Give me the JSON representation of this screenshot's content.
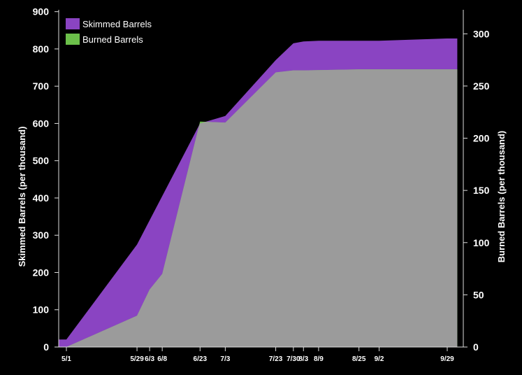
{
  "chart_data": {
    "type": "area",
    "title": "",
    "x_dates": [
      "5/1",
      "5/29",
      "6/3",
      "6/8",
      "6/23",
      "7/3",
      "7/23",
      "7/30",
      "8/3",
      "8/9",
      "8/25",
      "9/2",
      "9/29"
    ],
    "x_tick_labels": [
      "5/1",
      "5/29",
      "6/3",
      "6/8",
      "6/23",
      "7/3",
      "7/23",
      "7/30",
      "8/3",
      "8/9",
      "8/25",
      "9/2",
      "9/29"
    ],
    "x_days_note": "x positions follow calendar dates",
    "series": [
      {
        "name": "Skimmed Barrels",
        "axis": "left",
        "color": "#8a44c2",
        "points": [
          {
            "date": "4/27",
            "value": 20
          },
          {
            "date": "5/1",
            "value": 20
          },
          {
            "date": "5/29",
            "value": 275
          },
          {
            "date": "6/3",
            "value": 340
          },
          {
            "date": "6/23",
            "value": 600
          },
          {
            "date": "7/3",
            "value": 620
          },
          {
            "date": "7/23",
            "value": 770
          },
          {
            "date": "7/30",
            "value": 815
          },
          {
            "date": "8/3",
            "value": 820
          },
          {
            "date": "8/9",
            "value": 822
          },
          {
            "date": "8/25",
            "value": 822
          },
          {
            "date": "9/2",
            "value": 822
          },
          {
            "date": "9/29",
            "value": 828
          },
          {
            "date": "10/3",
            "value": 828
          }
        ]
      },
      {
        "name": "Burned Barrels",
        "axis": "right",
        "color": "#6cc04a",
        "points": [
          {
            "date": "4/27",
            "value": 0
          },
          {
            "date": "5/1",
            "value": 0
          },
          {
            "date": "5/29",
            "value": 30
          },
          {
            "date": "6/3",
            "value": 55
          },
          {
            "date": "6/8",
            "value": 70
          },
          {
            "date": "6/23",
            "value": 216
          },
          {
            "date": "7/3",
            "value": 215
          },
          {
            "date": "7/23",
            "value": 263
          },
          {
            "date": "7/30",
            "value": 265
          },
          {
            "date": "8/3",
            "value": 265
          },
          {
            "date": "8/25",
            "value": 266
          },
          {
            "date": "9/2",
            "value": 266
          },
          {
            "date": "9/29",
            "value": 266
          },
          {
            "date": "10/3",
            "value": 266
          }
        ]
      }
    ],
    "overlap_color": "#9b9b9b",
    "left_axis": {
      "label": "Skimmed Barrels (per thousand)",
      "ticks": [
        0,
        100,
        200,
        300,
        400,
        500,
        600,
        700,
        800,
        900
      ],
      "range": [
        0,
        905
      ]
    },
    "right_axis": {
      "label": "Burned Barrels (per thousand)",
      "ticks": [
        0,
        50,
        100,
        150,
        200,
        250,
        300
      ],
      "range": [
        0,
        323
      ]
    },
    "legend": {
      "position": "top-left",
      "entries": [
        "Skimmed Barrels",
        "Burned Barrels"
      ]
    },
    "grid": false
  }
}
